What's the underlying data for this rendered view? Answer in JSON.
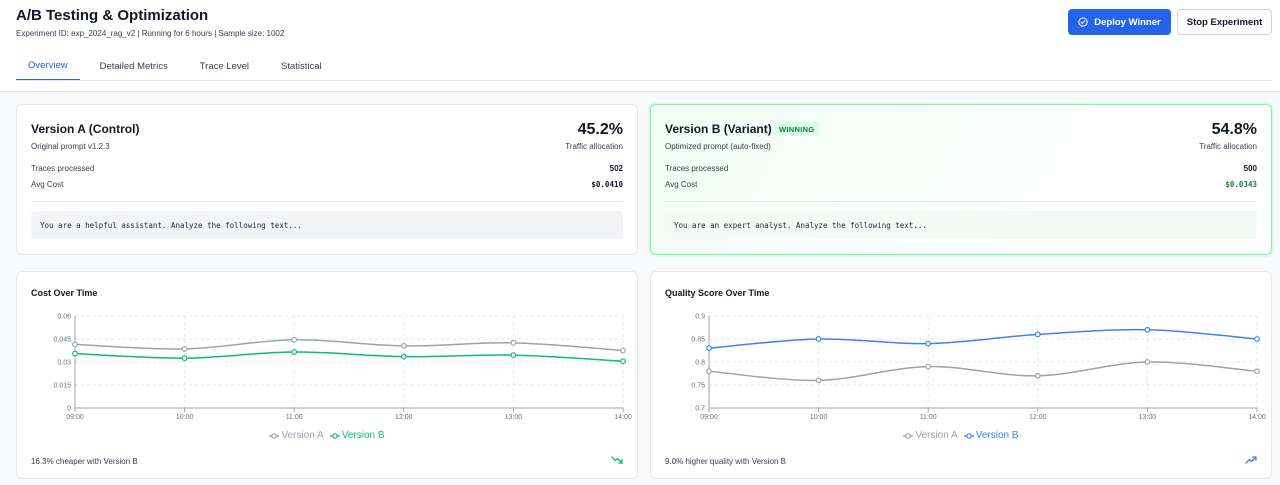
{
  "header": {
    "title": "A/B Testing & Optimization",
    "subtitle": "Experiment ID: exp_2024_rag_v2 | Running for 6 hours | Sample size: 1002",
    "deploy_label": "Deploy Winner",
    "stop_label": "Stop Experiment"
  },
  "tabs": [
    {
      "label": "Overview",
      "active": true
    },
    {
      "label": "Detailed Metrics",
      "active": false
    },
    {
      "label": "Trace Level",
      "active": false
    },
    {
      "label": "Statistical",
      "active": false
    }
  ],
  "version_a": {
    "title": "Version A (Control)",
    "subtitle": "Original prompt v1.2.3",
    "traffic": "45.2%",
    "traffic_label": "Traffic allocation",
    "traces_label": "Traces processed",
    "traces": "502",
    "cost_label": "Avg Cost",
    "cost": "$0.0410",
    "prompt": "You are a helpful assistant. Analyze the following text..."
  },
  "version_b": {
    "title": "Version B (Variant)",
    "badge": "WINNING",
    "subtitle": "Optimized prompt (auto-fixed)",
    "traffic": "54.8%",
    "traffic_label": "Traffic allocation",
    "traces_label": "Traces processed",
    "traces": "500",
    "cost_label": "Avg Cost",
    "cost": "$0.0343",
    "prompt": "You are an expert analyst. Analyze the following text..."
  },
  "colors": {
    "accent": "#2563eb",
    "series_a": "#9ca3af",
    "series_b_cost": "#10b981",
    "series_b_quality": "#3b82f6"
  },
  "cost_chart": {
    "title": "Cost Over Time",
    "footer": "16.3% cheaper with Version B",
    "footer_icon": "trending-down-icon"
  },
  "quality_chart": {
    "title": "Quality Score Over Time",
    "footer": "9.0% higher quality with Version B",
    "footer_icon": "trending-up-icon"
  },
  "chart_data": [
    {
      "type": "line",
      "title": "Cost Over Time",
      "x": [
        "09:00",
        "10:00",
        "11:00",
        "12:00",
        "13:00",
        "14:00"
      ],
      "series": [
        {
          "name": "Version A",
          "values": [
            0.0415,
            0.0385,
            0.0445,
            0.0405,
            0.0425,
            0.0375
          ]
        },
        {
          "name": "Version B",
          "values": [
            0.0355,
            0.0325,
            0.0365,
            0.0335,
            0.0345,
            0.0305
          ]
        }
      ],
      "ylim": [
        0,
        0.06
      ],
      "yticks": [
        "0",
        "0.015",
        "0.03",
        "0.045",
        "0.06"
      ],
      "grid": true,
      "legend": "bottom-center"
    },
    {
      "type": "line",
      "title": "Quality Score Over Time",
      "x": [
        "09:00",
        "10:00",
        "11:00",
        "12:00",
        "13:00",
        "14:00"
      ],
      "series": [
        {
          "name": "Version A",
          "values": [
            0.78,
            0.76,
            0.79,
            0.77,
            0.8,
            0.78
          ]
        },
        {
          "name": "Version B",
          "values": [
            0.83,
            0.85,
            0.84,
            0.86,
            0.87,
            0.85
          ]
        }
      ],
      "ylim": [
        0.7,
        0.9
      ],
      "yticks": [
        "0.7",
        "0.75",
        "0.8",
        "0.85",
        "0.9"
      ],
      "grid": true,
      "legend": "bottom-center"
    }
  ]
}
